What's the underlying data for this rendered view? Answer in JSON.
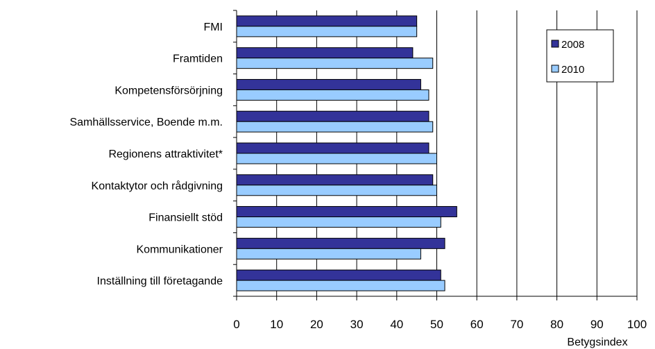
{
  "chart_data": {
    "type": "bar",
    "orientation": "horizontal",
    "categories": [
      "FMI",
      "Framtiden",
      "Kompetensförsörjning",
      "Samhällsservice, Boende m.m.",
      "Regionens attraktivitet*",
      "Kontaktytor och rådgivning",
      "Finansiellt stöd",
      "Kommunikationer",
      "Inställning till företagande"
    ],
    "series": [
      {
        "name": "2008",
        "color": "#333399",
        "values": [
          45,
          44,
          46,
          48,
          48,
          49,
          55,
          52,
          51
        ]
      },
      {
        "name": "2010",
        "color": "#99ccff",
        "values": [
          45,
          49,
          48,
          49,
          50,
          50,
          51,
          46,
          52
        ]
      }
    ],
    "xlim": [
      0,
      100
    ],
    "xticks": [
      0,
      10,
      20,
      30,
      40,
      50,
      60,
      70,
      80,
      90,
      100
    ],
    "xlabel": "Betygsindex",
    "grid": "vertical",
    "legend_position": "top-right"
  }
}
